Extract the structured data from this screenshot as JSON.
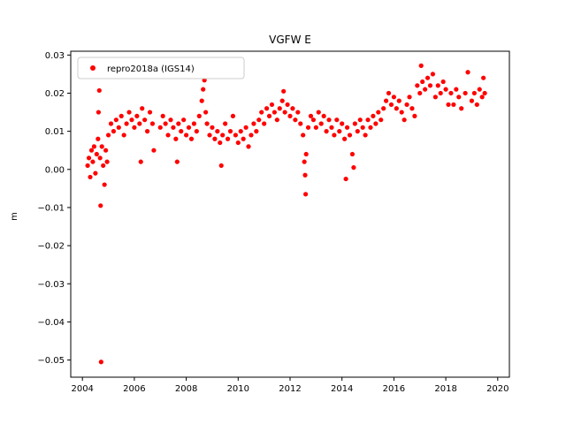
{
  "chart_data": {
    "type": "scatter",
    "title": "VGFW E",
    "xlabel": "",
    "ylabel": "m",
    "xlim": [
      2003.55,
      2020.45
    ],
    "ylim": [
      -0.0545,
      0.031
    ],
    "xticks": [
      2004,
      2006,
      2008,
      2010,
      2012,
      2014,
      2016,
      2018,
      2020
    ],
    "xtick_labels": [
      "2004",
      "2006",
      "2008",
      "2010",
      "2012",
      "2014",
      "2016",
      "2018",
      "2020"
    ],
    "yticks": [
      -0.05,
      -0.04,
      -0.03,
      -0.02,
      -0.01,
      0.0,
      0.01,
      0.02,
      0.03
    ],
    "ytick_labels": [
      "−0.05",
      "−0.04",
      "−0.03",
      "−0.02",
      "−0.01",
      "0.00",
      "0.01",
      "0.02",
      "0.03"
    ],
    "legend": {
      "placement": "upper-left"
    },
    "grid": false,
    "series": [
      {
        "name": "repro2018a (IGS14)",
        "color": "#ff0000",
        "marker": "circle",
        "points": [
          [
            2004.2,
            0.001
          ],
          [
            2004.25,
            0.003
          ],
          [
            2004.3,
            -0.002
          ],
          [
            2004.35,
            0.005
          ],
          [
            2004.4,
            0.002
          ],
          [
            2004.45,
            0.006
          ],
          [
            2004.5,
            -0.001
          ],
          [
            2004.55,
            0.004
          ],
          [
            2004.6,
            0.008
          ],
          [
            2004.62,
            0.015
          ],
          [
            2004.65,
            0.0207
          ],
          [
            2004.68,
            0.003
          ],
          [
            2004.7,
            -0.0095
          ],
          [
            2004.72,
            -0.0505
          ],
          [
            2004.75,
            0.006
          ],
          [
            2004.8,
            0.001
          ],
          [
            2004.85,
            -0.004
          ],
          [
            2004.9,
            0.005
          ],
          [
            2004.95,
            0.002
          ],
          [
            2005.0,
            0.009
          ],
          [
            2005.1,
            0.012
          ],
          [
            2005.2,
            0.01
          ],
          [
            2005.3,
            0.013
          ],
          [
            2005.4,
            0.011
          ],
          [
            2005.5,
            0.014
          ],
          [
            2005.6,
            0.009
          ],
          [
            2005.7,
            0.012
          ],
          [
            2005.8,
            0.015
          ],
          [
            2005.9,
            0.013
          ],
          [
            2006.0,
            0.011
          ],
          [
            2006.1,
            0.014
          ],
          [
            2006.2,
            0.012
          ],
          [
            2006.25,
            0.002
          ],
          [
            2006.3,
            0.016
          ],
          [
            2006.4,
            0.013
          ],
          [
            2006.5,
            0.01
          ],
          [
            2006.6,
            0.015
          ],
          [
            2006.7,
            0.012
          ],
          [
            2006.75,
            0.005
          ],
          [
            2007.0,
            0.011
          ],
          [
            2007.1,
            0.014
          ],
          [
            2007.2,
            0.012
          ],
          [
            2007.3,
            0.009
          ],
          [
            2007.4,
            0.013
          ],
          [
            2007.5,
            0.011
          ],
          [
            2007.6,
            0.008
          ],
          [
            2007.65,
            0.002
          ],
          [
            2007.7,
            0.012
          ],
          [
            2007.8,
            0.01
          ],
          [
            2007.9,
            0.013
          ],
          [
            2008.0,
            0.009
          ],
          [
            2008.1,
            0.011
          ],
          [
            2008.2,
            0.008
          ],
          [
            2008.3,
            0.012
          ],
          [
            2008.4,
            0.01
          ],
          [
            2008.5,
            0.014
          ],
          [
            2008.6,
            0.018
          ],
          [
            2008.65,
            0.021
          ],
          [
            2008.7,
            0.0234
          ],
          [
            2008.75,
            0.015
          ],
          [
            2008.8,
            0.012
          ],
          [
            2008.9,
            0.009
          ],
          [
            2009.0,
            0.011
          ],
          [
            2009.1,
            0.008
          ],
          [
            2009.2,
            0.01
          ],
          [
            2009.3,
            0.007
          ],
          [
            2009.35,
            0.001
          ],
          [
            2009.4,
            0.009
          ],
          [
            2009.5,
            0.012
          ],
          [
            2009.6,
            0.008
          ],
          [
            2009.7,
            0.01
          ],
          [
            2009.8,
            0.014
          ],
          [
            2009.9,
            0.009
          ],
          [
            2010.0,
            0.007
          ],
          [
            2010.1,
            0.01
          ],
          [
            2010.2,
            0.008
          ],
          [
            2010.3,
            0.011
          ],
          [
            2010.4,
            0.006
          ],
          [
            2010.5,
            0.009
          ],
          [
            2010.6,
            0.012
          ],
          [
            2010.7,
            0.01
          ],
          [
            2010.8,
            0.013
          ],
          [
            2010.9,
            0.015
          ],
          [
            2011.0,
            0.012
          ],
          [
            2011.1,
            0.016
          ],
          [
            2011.2,
            0.014
          ],
          [
            2011.3,
            0.017
          ],
          [
            2011.4,
            0.015
          ],
          [
            2011.5,
            0.013
          ],
          [
            2011.6,
            0.016
          ],
          [
            2011.7,
            0.018
          ],
          [
            2011.75,
            0.0205
          ],
          [
            2011.8,
            0.015
          ],
          [
            2011.9,
            0.017
          ],
          [
            2012.0,
            0.014
          ],
          [
            2012.1,
            0.016
          ],
          [
            2012.2,
            0.013
          ],
          [
            2012.3,
            0.015
          ],
          [
            2012.4,
            0.012
          ],
          [
            2012.5,
            0.009
          ],
          [
            2012.55,
            0.002
          ],
          [
            2012.58,
            -0.0015
          ],
          [
            2012.6,
            -0.0065
          ],
          [
            2012.62,
            0.004
          ],
          [
            2012.7,
            0.011
          ],
          [
            2012.8,
            0.014
          ],
          [
            2012.9,
            0.013
          ],
          [
            2013.0,
            0.011
          ],
          [
            2013.1,
            0.015
          ],
          [
            2013.2,
            0.012
          ],
          [
            2013.3,
            0.014
          ],
          [
            2013.4,
            0.01
          ],
          [
            2013.5,
            0.013
          ],
          [
            2013.6,
            0.011
          ],
          [
            2013.7,
            0.009
          ],
          [
            2013.8,
            0.013
          ],
          [
            2013.9,
            0.01
          ],
          [
            2014.0,
            0.012
          ],
          [
            2014.1,
            0.008
          ],
          [
            2014.15,
            -0.0025
          ],
          [
            2014.2,
            0.011
          ],
          [
            2014.3,
            0.009
          ],
          [
            2014.4,
            0.004
          ],
          [
            2014.45,
            0.0005
          ],
          [
            2014.5,
            0.012
          ],
          [
            2014.6,
            0.01
          ],
          [
            2014.7,
            0.013
          ],
          [
            2014.8,
            0.011
          ],
          [
            2014.9,
            0.009
          ],
          [
            2015.0,
            0.013
          ],
          [
            2015.1,
            0.011
          ],
          [
            2015.2,
            0.014
          ],
          [
            2015.3,
            0.012
          ],
          [
            2015.4,
            0.015
          ],
          [
            2015.5,
            0.013
          ],
          [
            2015.6,
            0.016
          ],
          [
            2015.7,
            0.018
          ],
          [
            2015.8,
            0.02
          ],
          [
            2015.9,
            0.017
          ],
          [
            2016.0,
            0.019
          ],
          [
            2016.1,
            0.016
          ],
          [
            2016.2,
            0.018
          ],
          [
            2016.3,
            0.015
          ],
          [
            2016.4,
            0.013
          ],
          [
            2016.5,
            0.017
          ],
          [
            2016.6,
            0.019
          ],
          [
            2016.7,
            0.016
          ],
          [
            2016.8,
            0.014
          ],
          [
            2016.9,
            0.022
          ],
          [
            2017.0,
            0.02
          ],
          [
            2017.05,
            0.0272
          ],
          [
            2017.1,
            0.023
          ],
          [
            2017.2,
            0.021
          ],
          [
            2017.3,
            0.024
          ],
          [
            2017.4,
            0.022
          ],
          [
            2017.5,
            0.025
          ],
          [
            2017.6,
            0.019
          ],
          [
            2017.7,
            0.022
          ],
          [
            2017.8,
            0.02
          ],
          [
            2017.9,
            0.023
          ],
          [
            2018.0,
            0.021
          ],
          [
            2018.1,
            0.017
          ],
          [
            2018.2,
            0.02
          ],
          [
            2018.3,
            0.017
          ],
          [
            2018.4,
            0.021
          ],
          [
            2018.5,
            0.019
          ],
          [
            2018.6,
            0.016
          ],
          [
            2018.75,
            0.02
          ],
          [
            2018.85,
            0.0255
          ],
          [
            2019.0,
            0.018
          ],
          [
            2019.1,
            0.02
          ],
          [
            2019.2,
            0.017
          ],
          [
            2019.3,
            0.021
          ],
          [
            2019.4,
            0.019
          ],
          [
            2019.45,
            0.024
          ],
          [
            2019.5,
            0.02
          ]
        ]
      }
    ]
  }
}
